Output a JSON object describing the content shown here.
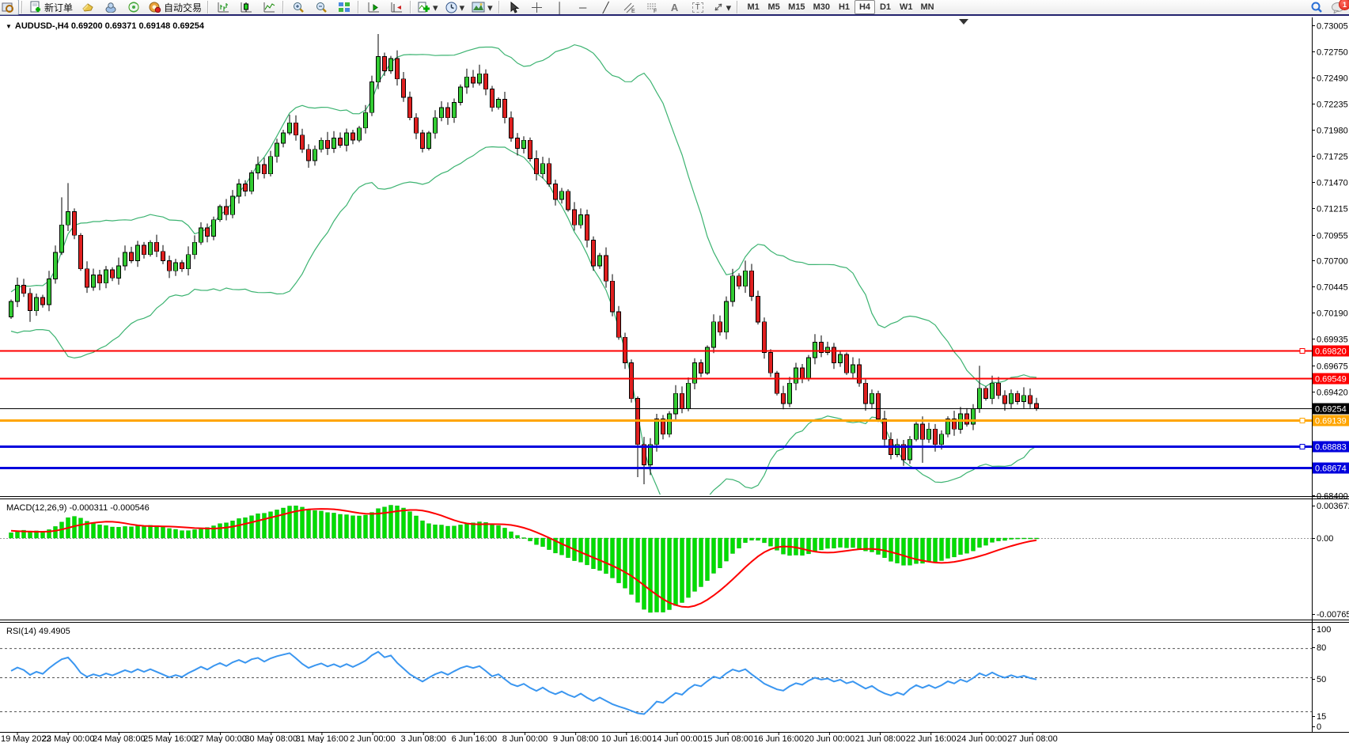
{
  "window": {
    "badge_count": "1"
  },
  "toolbar": {
    "new_order_label": "新订单",
    "autotrading_label": "自动交易",
    "timeframes": [
      {
        "label": "M1",
        "active": false
      },
      {
        "label": "M5",
        "active": false
      },
      {
        "label": "M15",
        "active": false
      },
      {
        "label": "M30",
        "active": false
      },
      {
        "label": "H1",
        "active": false
      },
      {
        "label": "H4",
        "active": true
      },
      {
        "label": "D1",
        "active": false
      },
      {
        "label": "W1",
        "active": false
      },
      {
        "label": "MN",
        "active": false
      }
    ],
    "text_tool_label": "A",
    "label_tool_label": "T"
  },
  "symbol_line": "AUDUSD-,H4  0.69200 0.69371 0.69148 0.69254",
  "chart_data": {
    "type": "candlestick",
    "title": "AUDUSD-,H4",
    "timeframe": "H4",
    "ohlc_display": {
      "open": "0.69200",
      "high": "0.69371",
      "low": "0.69148",
      "close": "0.69254"
    },
    "x_ticks": [
      "19 May 2022",
      "23 May 00:00",
      "24 May 08:00",
      "25 May 16:00",
      "27 May 00:00",
      "30 May 08:00",
      "31 May 16:00",
      "2 Jun 00:00",
      "3 Jun 08:00",
      "6 Jun 16:00",
      "8 Jun 00:00",
      "9 Jun 08:00",
      "10 Jun 16:00",
      "14 Jun 00:00",
      "15 Jun 08:00",
      "16 Jun 16:00",
      "20 Jun 00:00",
      "21 Jun 08:00",
      "22 Jun 16:00",
      "24 Jun 00:00",
      "27 Jun 08:00"
    ],
    "price_axis_ticks": [
      "0.73005",
      "0.72750",
      "0.72490",
      "0.72235",
      "0.71980",
      "0.71725",
      "0.71470",
      "0.71215",
      "0.70955",
      "0.70700",
      "0.70445",
      "0.70190",
      "0.69935",
      "0.69675",
      "0.69420",
      "0.68400"
    ],
    "levels": [
      {
        "price": 0.6982,
        "label": "0.69820",
        "color": "#fe0000",
        "thickness": 2,
        "marker": true
      },
      {
        "price": 0.69549,
        "label": "0.69549",
        "color": "#fe0000",
        "thickness": 2,
        "marker": false
      },
      {
        "price": 0.69254,
        "label": "0.69254",
        "color": "#000000",
        "thickness": 1,
        "marker": false
      },
      {
        "price": 0.69139,
        "label": "0.69139",
        "color": "#ffa500",
        "thickness": 3,
        "marker": true
      },
      {
        "price": 0.68883,
        "label": "0.68883",
        "color": "#0000dd",
        "thickness": 3,
        "marker": true
      },
      {
        "price": 0.68674,
        "label": "0.68674",
        "color": "#0000dd",
        "thickness": 3,
        "marker": false
      }
    ],
    "candles": {
      "first_open": 0.697,
      "warmup_closes": [
        0.698,
        0.6995,
        0.6985,
        0.7005,
        0.699,
        0.701,
        0.7,
        0.702,
        0.7005,
        0.7025,
        0.701,
        0.703,
        0.7015,
        0.7035,
        0.702,
        0.704,
        0.7025,
        0.703,
        0.7015,
        0.7025,
        0.701,
        0.7022,
        0.7008,
        0.7018,
        0.7006,
        0.7015
      ],
      "closes": [
        0.703,
        0.7046,
        0.7038,
        0.7021,
        0.7034,
        0.7027,
        0.7052,
        0.7078,
        0.7105,
        0.7118,
        0.7095,
        0.7062,
        0.7044,
        0.7056,
        0.7048,
        0.7061,
        0.7053,
        0.7065,
        0.7078,
        0.707,
        0.7085,
        0.7076,
        0.7088,
        0.7079,
        0.707,
        0.706,
        0.7068,
        0.7062,
        0.7076,
        0.7088,
        0.7102,
        0.7094,
        0.711,
        0.7123,
        0.7115,
        0.7133,
        0.7145,
        0.7138,
        0.7156,
        0.7164,
        0.7155,
        0.7172,
        0.7185,
        0.7195,
        0.7205,
        0.7193,
        0.7179,
        0.7168,
        0.7179,
        0.7188,
        0.718,
        0.719,
        0.7183,
        0.7195,
        0.7188,
        0.72,
        0.7215,
        0.7245,
        0.727,
        0.7256,
        0.7268,
        0.7248,
        0.723,
        0.721,
        0.7195,
        0.718,
        0.7195,
        0.721,
        0.722,
        0.721,
        0.7225,
        0.724,
        0.725,
        0.7244,
        0.7253,
        0.7238,
        0.722,
        0.7228,
        0.721,
        0.719,
        0.718,
        0.7188,
        0.717,
        0.7155,
        0.7165,
        0.7145,
        0.713,
        0.7138,
        0.712,
        0.7105,
        0.7115,
        0.709,
        0.7065,
        0.7075,
        0.705,
        0.702,
        0.6995,
        0.697,
        0.6935,
        0.689,
        0.687,
        0.689,
        0.6915,
        0.69,
        0.692,
        0.694,
        0.6925,
        0.695,
        0.697,
        0.696,
        0.6985,
        0.701,
        0.7,
        0.703,
        0.7055,
        0.7045,
        0.706,
        0.7035,
        0.701,
        0.698,
        0.696,
        0.694,
        0.693,
        0.695,
        0.6965,
        0.6955,
        0.6975,
        0.699,
        0.698,
        0.6985,
        0.697,
        0.6978,
        0.696,
        0.6968,
        0.695,
        0.693,
        0.694,
        0.6915,
        0.6895,
        0.688,
        0.689,
        0.6875,
        0.6895,
        0.691,
        0.6895,
        0.6905,
        0.689,
        0.69,
        0.6915,
        0.6905,
        0.692,
        0.691,
        0.6925,
        0.6945,
        0.6935,
        0.695,
        0.6938,
        0.693,
        0.694,
        0.6932,
        0.6938,
        0.693,
        0.69254
      ],
      "high_overrides": {
        "8": 0.7132,
        "9": 0.7146,
        "44": 0.7213,
        "58": 0.7292,
        "74": 0.7262,
        "114": 0.7062,
        "116": 0.707,
        "153": 0.6967
      },
      "low_overrides": {
        "3": 0.701,
        "99": 0.6858,
        "100": 0.6851,
        "101": 0.686,
        "141": 0.6869,
        "144": 0.6872
      },
      "up_color": "#33cc33",
      "down_color": "#e02020",
      "wick_color": "#000000"
    },
    "indicators": {
      "bollinger": {
        "period": 20,
        "deviation": 2,
        "color": "#3cb371"
      },
      "macd": {
        "name": "MACD(12,26,9)",
        "value_main": "-0.000311",
        "value_signal": "-0.000546",
        "axis_ticks": [
          "0.003672",
          "0.00",
          "-0.007656"
        ],
        "bar_color": "#00dd00",
        "signal_color": "#fe0000"
      },
      "rsi": {
        "name": "RSI(14)",
        "value": "49.4905",
        "levels": [
          80,
          50,
          15
        ],
        "axis_ticks": [
          "100",
          "80",
          "50",
          "15",
          "0"
        ],
        "color": "#3a96f0"
      }
    }
  }
}
